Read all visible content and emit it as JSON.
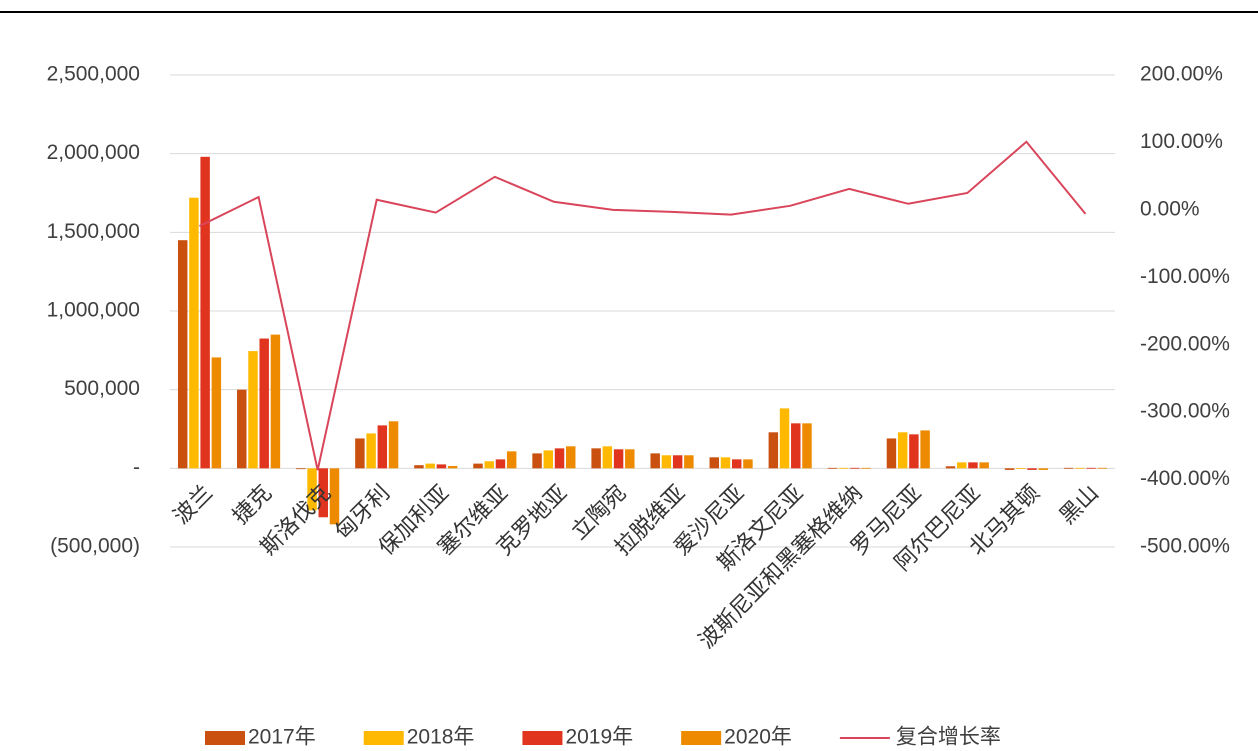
{
  "chart_data": {
    "type": "bar",
    "categories": [
      "波兰",
      "捷克",
      "斯洛伐克",
      "匈牙利",
      "保加利亚",
      "塞尔维亚",
      "克罗地亚",
      "立陶宛",
      "拉脱维亚",
      "爱沙尼亚",
      "斯洛文尼亚",
      "波斯尼亚和黑塞格维纳",
      "罗马尼亚",
      "阿尔巴尼亚",
      "北马其顿",
      "黑山"
    ],
    "series": [
      {
        "name": "2017年",
        "color": "#c9500e",
        "values": [
          1450000,
          500000,
          -5000,
          190000,
          20000,
          30000,
          95000,
          127000,
          95000,
          70000,
          229000,
          3000,
          190000,
          13000,
          -10000,
          3000
        ]
      },
      {
        "name": "2018年",
        "color": "#ffb900",
        "values": [
          1720000,
          745000,
          -267000,
          222000,
          30000,
          45000,
          114000,
          140000,
          83000,
          70000,
          381000,
          3000,
          229000,
          38000,
          2000,
          3000
        ]
      },
      {
        "name": "2019年",
        "color": "#e0341f",
        "values": [
          1980000,
          825000,
          -311000,
          273000,
          25000,
          57000,
          127000,
          121000,
          83000,
          57000,
          286000,
          3000,
          216000,
          38000,
          -10000,
          3000
        ]
      },
      {
        "name": "2020年",
        "color": "#ee8a00",
        "values": [
          705000,
          850000,
          -356000,
          299000,
          15000,
          108000,
          140000,
          121000,
          83000,
          57000,
          286000,
          3000,
          241000,
          38000,
          -10000,
          3000
        ]
      },
      {
        "name": "复合增长率",
        "type": "line",
        "axis": "y2",
        "color": "#d9455a",
        "values": [
          -24,
          19,
          -386,
          15,
          -4,
          49,
          12,
          0,
          -3,
          -7,
          6,
          31,
          9,
          25,
          101,
          -6
        ]
      }
    ],
    "ylim": [
      -500000,
      2500000
    ],
    "yticks": [
      {
        "value": -500000,
        "label": "(500,000)"
      },
      {
        "value": 0,
        "label": "-"
      },
      {
        "value": 500000,
        "label": "500,000"
      },
      {
        "value": 1000000,
        "label": "1,000,000"
      },
      {
        "value": 1500000,
        "label": "1,500,000"
      },
      {
        "value": 2000000,
        "label": "2,000,000"
      },
      {
        "value": 2500000,
        "label": "2,500,000"
      }
    ],
    "y2lim": [
      -500,
      200
    ],
    "y2ticks": [
      {
        "value": -500,
        "label": "-500.00%"
      },
      {
        "value": -400,
        "label": "-400.00%"
      },
      {
        "value": -300,
        "label": "-300.00%"
      },
      {
        "value": -200,
        "label": "-200.00%"
      },
      {
        "value": -100,
        "label": "-100.00%"
      },
      {
        "value": 0,
        "label": "0.00%"
      },
      {
        "value": 100,
        "label": "100.00%"
      },
      {
        "value": 200,
        "label": "200.00%"
      }
    ],
    "grid": true,
    "legend": "bottom"
  }
}
